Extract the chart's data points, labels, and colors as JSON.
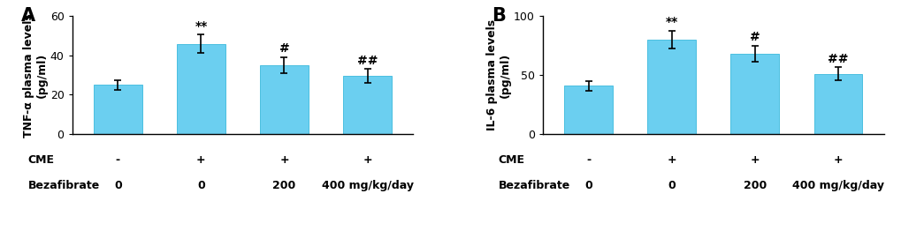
{
  "panel_A": {
    "label": "A",
    "ylabel": "TNF-α plasma levels\n(pg/ml)",
    "values": [
      25,
      46,
      35,
      29.5
    ],
    "errors": [
      2.5,
      4.5,
      4.0,
      3.5
    ],
    "ylim": [
      0,
      60
    ],
    "yticks": [
      0,
      20,
      40,
      60
    ],
    "sig_labels": [
      "",
      "**",
      "#",
      "##"
    ],
    "cme_labels": [
      "-",
      "+",
      "+",
      "+"
    ],
    "beza_labels": [
      "0",
      "0",
      "200",
      "400 mg/kg/day"
    ]
  },
  "panel_B": {
    "label": "B",
    "ylabel": "IL-6 plasma levels\n(pg/ml)",
    "values": [
      41,
      80,
      68,
      51
    ],
    "errors": [
      4.0,
      7.5,
      6.5,
      5.5
    ],
    "ylim": [
      0,
      100
    ],
    "yticks": [
      0,
      50,
      100
    ],
    "sig_labels": [
      "",
      "**",
      "#",
      "##"
    ],
    "cme_labels": [
      "-",
      "+",
      "+",
      "+"
    ],
    "beza_labels": [
      "0",
      "0",
      "200",
      "400 mg/kg/day"
    ]
  },
  "bar_color": "#6BCFF0",
  "bar_edgecolor": "#4ABFE0",
  "background_color": "#ffffff",
  "bar_width": 0.58,
  "x_positions": [
    0,
    1,
    2,
    3
  ],
  "label_fontsize": 10,
  "sig_fontsize": 10,
  "ylabel_fontsize": 9,
  "tick_fontsize": 9,
  "panel_label_fontsize": 15,
  "row_label_fontsize": 9
}
